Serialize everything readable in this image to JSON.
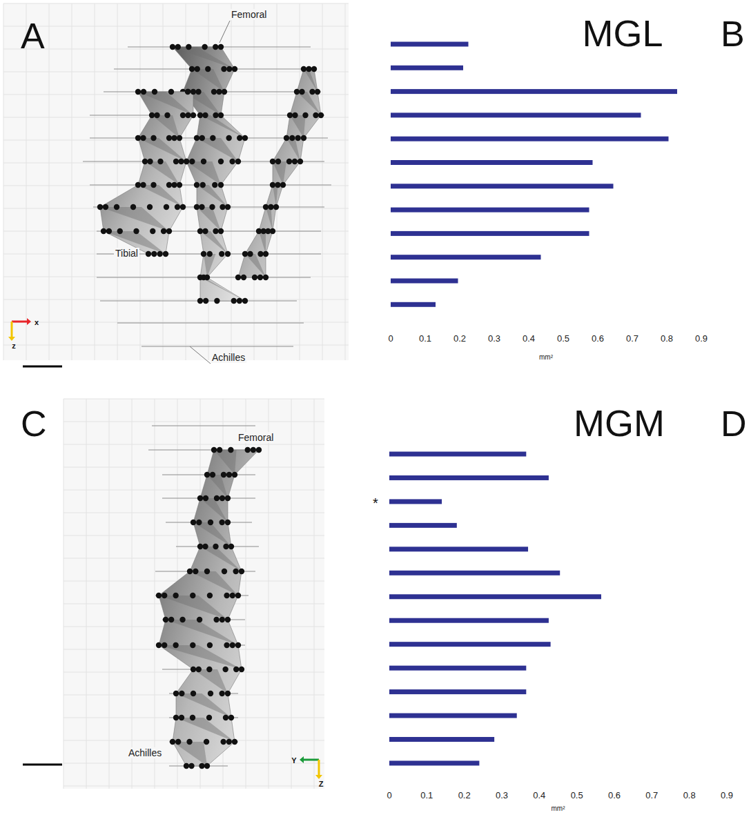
{
  "chart_data": [
    {
      "type": "bar",
      "orientation": "horizontal",
      "panel_label": "B",
      "title": "MGL",
      "x_label": "mm²",
      "categories": [
        null,
        null,
        null,
        null,
        null,
        null,
        null,
        null,
        null,
        null,
        null,
        null
      ],
      "values": [
        0.225,
        0.21,
        0.83,
        0.725,
        0.805,
        0.585,
        0.645,
        0.575,
        0.575,
        0.435,
        0.195,
        0.13
      ],
      "color": "#2e3192",
      "xlim": [
        0,
        0.9
      ],
      "xticks": [
        0,
        0.1,
        0.2,
        0.3,
        0.4,
        0.5,
        0.6,
        0.7,
        0.8,
        0.9
      ],
      "tick_labels": "x",
      "grid": false
    },
    {
      "type": "bar",
      "orientation": "horizontal",
      "panel_label": "D",
      "title": "MGM",
      "x_label": "mm²",
      "categories": [
        null,
        null,
        null,
        null,
        null,
        null,
        null,
        null,
        null,
        null,
        null,
        null,
        null,
        null
      ],
      "values": [
        0.365,
        0.425,
        0.14,
        0.18,
        0.37,
        0.455,
        0.565,
        0.425,
        0.43,
        0.365,
        0.365,
        0.34,
        0.28,
        0.24
      ],
      "color": "#2e3192",
      "xlim": [
        0,
        0.9
      ],
      "xticks": [
        0,
        0.1,
        0.2,
        0.3,
        0.4,
        0.5,
        0.6,
        0.7,
        0.8,
        0.9
      ],
      "tick_labels": "x",
      "grid": false,
      "annotations": [
        {
          "text": "*",
          "index": 2
        }
      ]
    }
  ],
  "reconstructions": [
    {
      "panel_label": "A",
      "labels": [
        "Femoral",
        "Tibial",
        "Achilles"
      ],
      "axis_labels": [
        "x",
        "z"
      ]
    },
    {
      "panel_label": "C",
      "labels": [
        "Femoral",
        "Achilles"
      ],
      "axis_labels": [
        "Y",
        "Z"
      ]
    }
  ]
}
